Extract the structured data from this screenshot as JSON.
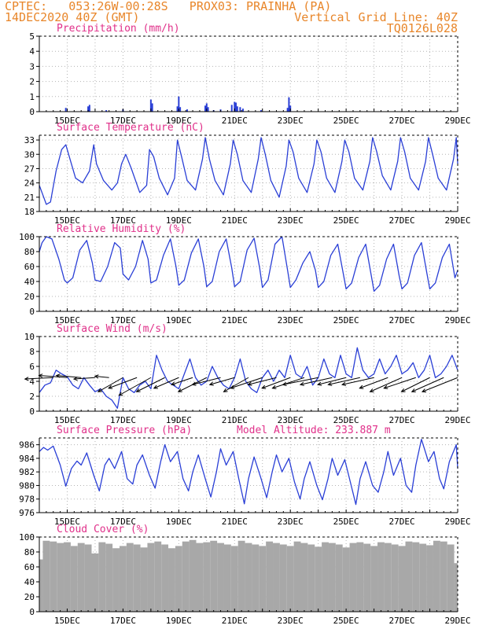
{
  "header": {
    "line1": "CPTEC:   053:26W-00:28S   PROX03: PRAINHA (PA)",
    "line2": "14DEC2020 40Z (GMT)",
    "grid_note": "Vertical Grid Line: 40Z",
    "code": "TQ0126L028"
  },
  "colors": {
    "header": "#e8862a",
    "title": "#e0308a",
    "line": "#2a3fd6",
    "cloud": "#a8a8a8",
    "grid": "#b4b4b4"
  },
  "chart_data": [
    {
      "id": "precip",
      "type": "bar",
      "title": "Precipitation (mm/h)",
      "xlabel": "",
      "ylabel": "",
      "ylim": [
        0,
        5
      ],
      "yticks": [
        0,
        1,
        2,
        3,
        4,
        5
      ],
      "xticks": [
        "15DEC",
        "17DEC",
        "19DEC",
        "21DEC",
        "23DEC",
        "25DEC",
        "27DEC",
        "29DEC"
      ],
      "grid": true,
      "color": "#2a3fd6",
      "x": [
        14.95,
        15.75,
        15.8,
        16.4,
        17.0,
        18.0,
        18.05,
        18.95,
        19.0,
        19.05,
        19.3,
        19.95,
        20.0,
        20.05,
        20.25,
        20.5,
        20.9,
        21.0,
        21.05,
        21.1,
        21.2,
        21.3,
        21.95,
        22.9,
        22.95,
        23.0
      ],
      "values": [
        0.25,
        0.35,
        0.45,
        0.1,
        0.15,
        0.8,
        0.55,
        0.35,
        1.0,
        0.3,
        0.15,
        0.4,
        0.55,
        0.3,
        0.1,
        0.15,
        0.45,
        0.65,
        0.6,
        0.35,
        0.3,
        0.2,
        0.1,
        0.25,
        0.95,
        0.4
      ]
    },
    {
      "id": "temp",
      "type": "line",
      "title": "Surface Temperature (nC)",
      "xlabel": "",
      "ylabel": "",
      "ylim": [
        18,
        34
      ],
      "yticks": [
        18,
        21,
        24,
        27,
        30,
        33
      ],
      "xticks": [
        "15DEC",
        "17DEC",
        "19DEC",
        "21DEC",
        "23DEC",
        "25DEC",
        "27DEC",
        "29DEC"
      ],
      "grid": true,
      "color": "#2a3fd6",
      "x": [
        14.0,
        14.25,
        14.4,
        14.6,
        14.8,
        14.95,
        15.1,
        15.3,
        15.55,
        15.8,
        15.95,
        16.05,
        16.3,
        16.6,
        16.8,
        16.95,
        17.1,
        17.3,
        17.6,
        17.85,
        17.95,
        18.1,
        18.3,
        18.6,
        18.85,
        18.95,
        19.1,
        19.3,
        19.6,
        19.85,
        19.95,
        20.1,
        20.3,
        20.6,
        20.85,
        20.95,
        21.1,
        21.3,
        21.6,
        21.85,
        21.95,
        22.1,
        22.3,
        22.6,
        22.85,
        22.95,
        23.1,
        23.3,
        23.6,
        23.85,
        23.95,
        24.1,
        24.3,
        24.6,
        24.85,
        24.95,
        25.1,
        25.3,
        25.6,
        25.85,
        25.95,
        26.1,
        26.3,
        26.6,
        26.85,
        26.95,
        27.1,
        27.3,
        27.6,
        27.85,
        27.95,
        28.1,
        28.3,
        28.6,
        28.85,
        28.95,
        29.0
      ],
      "values": [
        23.5,
        19.5,
        20.0,
        26.5,
        31.0,
        32.0,
        29.0,
        25.0,
        24.0,
        26.5,
        32.0,
        28.0,
        24.5,
        22.5,
        24.0,
        28.0,
        30.0,
        27.0,
        22.0,
        23.5,
        31.0,
        29.5,
        25.0,
        21.5,
        25.0,
        33.0,
        29.5,
        24.5,
        22.5,
        29.0,
        33.5,
        29.0,
        24.5,
        21.5,
        28.0,
        33.0,
        30.0,
        24.5,
        22.0,
        29.0,
        33.5,
        30.0,
        24.5,
        21.0,
        27.5,
        33.0,
        30.5,
        25.0,
        22.0,
        28.0,
        33.0,
        30.5,
        25.0,
        22.0,
        28.5,
        33.0,
        30.5,
        25.0,
        22.5,
        28.5,
        33.5,
        30.5,
        25.5,
        22.5,
        28.5,
        33.5,
        30.5,
        25.0,
        22.5,
        28.5,
        33.5,
        30.0,
        25.0,
        22.5,
        29.0,
        33.5,
        28.0
      ]
    },
    {
      "id": "rh",
      "type": "line",
      "title": "Relative Humidity (%)",
      "xlabel": "",
      "ylabel": "",
      "ylim": [
        0,
        100
      ],
      "yticks": [
        0,
        20,
        40,
        60,
        80,
        100
      ],
      "xticks": [
        "15DEC",
        "17DEC",
        "19DEC",
        "21DEC",
        "23DEC",
        "25DEC",
        "27DEC",
        "29DEC"
      ],
      "grid": true,
      "color": "#2a3fd6",
      "x": [
        14.0,
        14.1,
        14.25,
        14.45,
        14.7,
        14.9,
        15.0,
        15.2,
        15.45,
        15.7,
        15.9,
        16.0,
        16.2,
        16.45,
        16.7,
        16.9,
        17.0,
        17.2,
        17.45,
        17.7,
        17.9,
        18.0,
        18.2,
        18.45,
        18.7,
        18.9,
        19.0,
        19.2,
        19.45,
        19.7,
        19.9,
        20.0,
        20.2,
        20.45,
        20.7,
        20.9,
        21.0,
        21.2,
        21.45,
        21.7,
        21.9,
        22.0,
        22.2,
        22.45,
        22.7,
        22.9,
        23.0,
        23.2,
        23.45,
        23.7,
        23.9,
        24.0,
        24.2,
        24.45,
        24.7,
        24.9,
        25.0,
        25.2,
        25.45,
        25.7,
        25.9,
        26.0,
        26.2,
        26.45,
        26.7,
        26.9,
        27.0,
        27.2,
        27.45,
        27.7,
        27.9,
        28.0,
        28.2,
        28.45,
        28.7,
        28.9,
        29.0
      ],
      "values": [
        80,
        92,
        100,
        97,
        70,
        42,
        38,
        45,
        82,
        95,
        65,
        42,
        40,
        60,
        92,
        85,
        50,
        42,
        60,
        95,
        70,
        38,
        42,
        75,
        97,
        60,
        35,
        42,
        78,
        97,
        60,
        33,
        40,
        80,
        97,
        58,
        33,
        40,
        82,
        98,
        58,
        32,
        42,
        90,
        100,
        55,
        32,
        42,
        65,
        80,
        55,
        32,
        40,
        75,
        90,
        50,
        30,
        38,
        72,
        90,
        48,
        27,
        35,
        70,
        90,
        48,
        30,
        38,
        75,
        92,
        50,
        30,
        38,
        72,
        90,
        45,
        55
      ]
    },
    {
      "id": "wind",
      "type": "line",
      "title": "Surface Wind (m/s)",
      "xlabel": "",
      "ylabel": "",
      "ylim": [
        0,
        10
      ],
      "yticks": [
        0,
        2,
        4,
        6,
        8,
        10
      ],
      "xticks": [
        "15DEC",
        "17DEC",
        "19DEC",
        "21DEC",
        "23DEC",
        "25DEC",
        "27DEC",
        "29DEC"
      ],
      "grid": true,
      "color": "#2a3fd6",
      "x": [
        14.0,
        14.2,
        14.4,
        14.6,
        14.8,
        15.0,
        15.2,
        15.4,
        15.6,
        15.8,
        16.0,
        16.2,
        16.4,
        16.6,
        16.8,
        17.0,
        17.2,
        17.4,
        17.6,
        17.8,
        18.0,
        18.2,
        18.4,
        18.6,
        18.8,
        19.0,
        19.2,
        19.4,
        19.6,
        19.8,
        20.0,
        20.2,
        20.4,
        20.6,
        20.8,
        21.0,
        21.2,
        21.4,
        21.6,
        21.8,
        22.0,
        22.2,
        22.4,
        22.6,
        22.8,
        23.0,
        23.2,
        23.4,
        23.6,
        23.8,
        24.0,
        24.2,
        24.4,
        24.6,
        24.8,
        25.0,
        25.2,
        25.4,
        25.6,
        25.8,
        26.0,
        26.2,
        26.4,
        26.6,
        26.8,
        27.0,
        27.2,
        27.4,
        27.6,
        27.8,
        28.0,
        28.2,
        28.4,
        28.6,
        28.8,
        29.0
      ],
      "values": [
        2.5,
        3.5,
        3.8,
        5.5,
        5.0,
        4.6,
        3.5,
        3.0,
        4.5,
        3.5,
        2.6,
        3.0,
        2.0,
        1.5,
        0.4,
        4.5,
        3.0,
        2.5,
        3.5,
        4.0,
        3.0,
        7.5,
        5.5,
        4.0,
        3.5,
        3.0,
        5.0,
        7.0,
        4.5,
        3.5,
        4.0,
        6.0,
        4.5,
        3.5,
        3.0,
        4.5,
        7.0,
        4.0,
        3.0,
        2.5,
        4.5,
        5.5,
        4.0,
        5.5,
        4.5,
        7.5,
        5.0,
        4.5,
        6.0,
        3.5,
        4.5,
        7.0,
        5.0,
        4.5,
        7.5,
        5.0,
        4.5,
        8.5,
        5.5,
        4.5,
        5.0,
        7.0,
        5.0,
        6.0,
        7.5,
        5.0,
        5.5,
        6.5,
        4.5,
        5.5,
        7.5,
        4.5,
        5.0,
        6.0,
        7.5,
        5.5
      ],
      "vectors": {
        "t": [
          14.5,
          15.0,
          15.5,
          16.0,
          16.5,
          17.0,
          17.5,
          18.0,
          18.5,
          19.0,
          19.5,
          20.0,
          20.5,
          21.0,
          21.5,
          22.0,
          22.5,
          23.0,
          23.5,
          24.0,
          24.5,
          25.0,
          25.5,
          26.0,
          26.5,
          27.0,
          27.5,
          28.0,
          28.5,
          29.0
        ],
        "u": [
          -4.0,
          -4.0,
          -3.5,
          -3.0,
          -2.0,
          -3.5,
          -4.0,
          -4.5,
          -4.0,
          -3.5,
          -3.0,
          -4.0,
          -4.0,
          -3.5,
          -3.5,
          -4.5,
          -4.0,
          -4.0,
          -4.5,
          -5.0,
          -4.5,
          -4.0,
          -4.5,
          -4.5,
          -4.0,
          -4.5,
          -4.5,
          -4.0,
          -4.5,
          -5.0
        ],
        "v": [
          -0.2,
          0.3,
          0.3,
          -0.2,
          0.2,
          -2.0,
          -1.5,
          -2.5,
          -2.0,
          -1.5,
          -1.0,
          -2.0,
          -1.0,
          -1.0,
          -2.0,
          -1.5,
          -1.0,
          -1.5,
          -1.5,
          -1.0,
          -1.0,
          -1.0,
          -1.0,
          -1.0,
          -1.5,
          -2.0,
          -1.5,
          -2.0,
          -2.0,
          -2.0
        ]
      }
    },
    {
      "id": "press",
      "type": "line",
      "title": "Surface Pressure (hPa)",
      "subtitle": "Model Altitude: 233.887 m",
      "xlabel": "",
      "ylabel": "",
      "ylim": [
        976,
        987
      ],
      "yticks": [
        976,
        978,
        980,
        982,
        984,
        986
      ],
      "xticks": [
        "15DEC",
        "17DEC",
        "19DEC",
        "21DEC",
        "23DEC",
        "25DEC",
        "27DEC",
        "29DEC"
      ],
      "grid": true,
      "color": "#2a3fd6",
      "x": [
        14.0,
        14.15,
        14.3,
        14.5,
        14.75,
        14.95,
        15.15,
        15.35,
        15.5,
        15.7,
        15.95,
        16.15,
        16.35,
        16.5,
        16.7,
        16.95,
        17.15,
        17.35,
        17.5,
        17.7,
        17.95,
        18.15,
        18.35,
        18.5,
        18.7,
        18.95,
        19.15,
        19.35,
        19.5,
        19.7,
        19.95,
        20.15,
        20.35,
        20.5,
        20.7,
        20.95,
        21.15,
        21.35,
        21.5,
        21.7,
        21.95,
        22.15,
        22.35,
        22.5,
        22.7,
        22.95,
        23.15,
        23.35,
        23.5,
        23.7,
        23.95,
        24.15,
        24.35,
        24.5,
        24.7,
        24.95,
        25.15,
        25.35,
        25.5,
        25.7,
        25.95,
        26.15,
        26.35,
        26.5,
        26.7,
        26.95,
        27.15,
        27.35,
        27.5,
        27.7,
        27.95,
        28.15,
        28.35,
        28.5,
        28.7,
        28.95,
        29.0
      ],
      "values": [
        985.0,
        985.6,
        985.2,
        985.8,
        983.0,
        979.9,
        982.5,
        983.6,
        983.0,
        984.8,
        981.5,
        979.2,
        983.0,
        984.0,
        982.5,
        985.0,
        981.0,
        980.2,
        983.0,
        984.5,
        981.5,
        979.6,
        983.5,
        986.0,
        983.5,
        985.0,
        981.0,
        979.2,
        982.0,
        984.5,
        981.0,
        978.3,
        982.0,
        985.4,
        983.0,
        985.0,
        981.0,
        977.3,
        981.0,
        984.2,
        981.0,
        978.2,
        982.0,
        984.5,
        982.0,
        984.0,
        980.5,
        978.0,
        981.0,
        983.5,
        980.0,
        977.9,
        981.0,
        984.0,
        981.5,
        983.8,
        980.5,
        977.2,
        981.0,
        983.5,
        980.0,
        979.0,
        982.0,
        985.0,
        981.5,
        984.0,
        980.0,
        979.0,
        983.0,
        986.8,
        983.5,
        985.0,
        981.0,
        979.5,
        983.5,
        986.0,
        982.5
      ]
    },
    {
      "id": "cloud",
      "type": "bar",
      "title": "Cloud Cover (%)",
      "xlabel": "",
      "ylabel": "",
      "ylim": [
        0,
        100
      ],
      "yticks": [
        0,
        20,
        40,
        60,
        80,
        100
      ],
      "xticks": [
        "15DEC",
        "17DEC",
        "19DEC",
        "21DEC",
        "23DEC",
        "25DEC",
        "27DEC",
        "29DEC"
      ],
      "grid": true,
      "color": "#a8a8a8",
      "x": [
        14.0,
        14.25,
        14.5,
        14.75,
        15.0,
        15.25,
        15.5,
        15.75,
        16.0,
        16.25,
        16.5,
        16.75,
        17.0,
        17.25,
        17.5,
        17.75,
        18.0,
        18.25,
        18.5,
        18.75,
        19.0,
        19.25,
        19.5,
        19.75,
        20.0,
        20.25,
        20.5,
        20.75,
        21.0,
        21.25,
        21.5,
        21.75,
        22.0,
        22.25,
        22.5,
        22.75,
        23.0,
        23.25,
        23.5,
        23.75,
        24.0,
        24.25,
        24.5,
        24.75,
        25.0,
        25.25,
        25.5,
        25.75,
        26.0,
        26.25,
        26.5,
        26.75,
        27.0,
        27.25,
        27.5,
        27.75,
        28.0,
        28.25,
        28.5,
        28.75,
        29.0
      ],
      "values": [
        70,
        95,
        94,
        92,
        93,
        88,
        92,
        90,
        78,
        93,
        91,
        85,
        88,
        92,
        90,
        86,
        92,
        94,
        90,
        85,
        88,
        94,
        96,
        92,
        93,
        95,
        92,
        90,
        88,
        95,
        92,
        90,
        88,
        94,
        92,
        90,
        88,
        94,
        92,
        90,
        87,
        93,
        92,
        90,
        86,
        92,
        93,
        91,
        88,
        93,
        92,
        90,
        88,
        94,
        93,
        91,
        89,
        95,
        94,
        90,
        65
      ]
    }
  ]
}
